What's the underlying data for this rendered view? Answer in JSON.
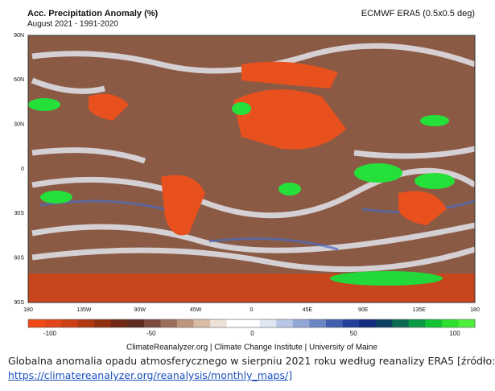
{
  "header": {
    "title": "Acc. Precipitation Anomaly (%)",
    "subtitle": "August 2021 - 1991-2020",
    "source": "ECMWF ERA5 (0.5x0.5 deg)"
  },
  "map": {
    "lat_labels": [
      "90N",
      "60N",
      "30N",
      "0",
      "30S",
      "60S",
      "90S"
    ],
    "lon_labels": [
      "180",
      "135W",
      "90W",
      "45W",
      "0",
      "45E",
      "90E",
      "135E",
      "180"
    ]
  },
  "colorbar": {
    "colors": [
      "#f04a16",
      "#e2451a",
      "#cc3f14",
      "#b03810",
      "#903010",
      "#702814",
      "#5c2a1e",
      "#7a4a3c",
      "#9c6e5c",
      "#bc967e",
      "#d8bca6",
      "#eee2d6",
      "#ffffff",
      "#ffffff",
      "#dfe6f4",
      "#b9c6e6",
      "#93a6d6",
      "#6a84c4",
      "#4060ae",
      "#24409a",
      "#142a7c",
      "#0c3e62",
      "#0a6a52",
      "#0a9a42",
      "#12c434",
      "#2ee02e",
      "#4cf03c"
    ],
    "labels": [
      "-100",
      "-50",
      "0",
      "50",
      "100"
    ]
  },
  "credit": "ClimateReanalyzer.org | Climate Change Institute | University of Maine",
  "caption": {
    "text": "Globalna anomalia opadu atmosferycznego w sierpniu 2021 roku według reanalizy ERA5 [źródło:",
    "link": "https://climatereanalyzer.org/reanalysis/monthly_maps/]"
  }
}
